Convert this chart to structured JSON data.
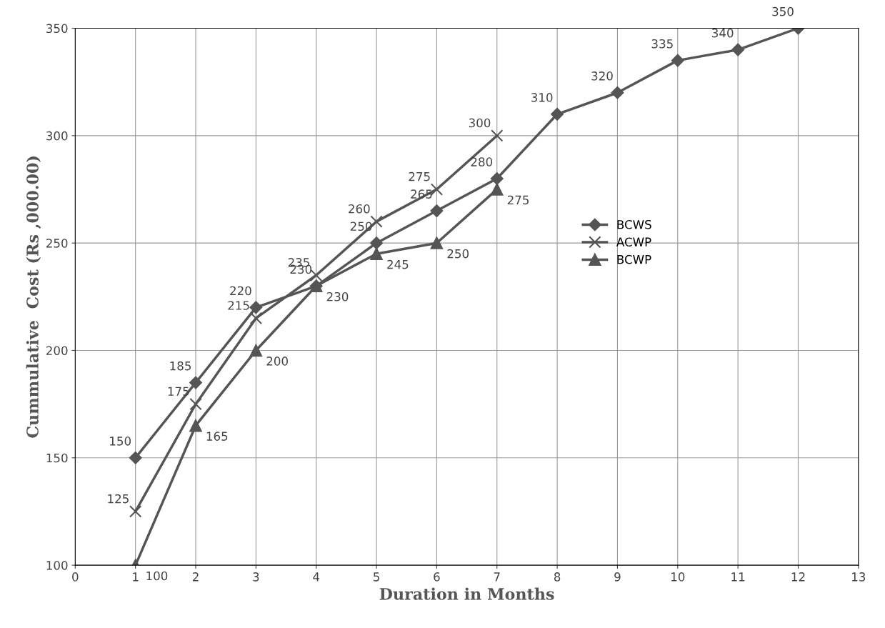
{
  "chart_data": {
    "type": "line",
    "xlabel": "Duration in Months",
    "ylabel": "Cummulative  Cost (Rs ,000.00)",
    "xlim": [
      0,
      13
    ],
    "xticks": [
      0,
      1,
      2,
      3,
      4,
      5,
      6,
      7,
      8,
      9,
      10,
      11,
      12,
      13
    ],
    "ylim": [
      100,
      350
    ],
    "yticks": [
      100,
      150,
      200,
      250,
      300,
      350
    ],
    "grid": true,
    "legend": "center right",
    "data_labels": true,
    "series": [
      {
        "name": "BCWS",
        "color": "#555555",
        "marker": "diamond",
        "x": [
          1,
          2,
          3,
          4,
          5,
          6,
          7,
          8,
          9,
          10,
          11,
          12
        ],
        "values": [
          150,
          185,
          220,
          230,
          250,
          265,
          280,
          310,
          320,
          335,
          340,
          350
        ]
      },
      {
        "name": "ACWP",
        "color": "#555555",
        "marker": "cross",
        "x": [
          1,
          2,
          3,
          4,
          5,
          6,
          7
        ],
        "values": [
          125,
          175,
          215,
          235,
          260,
          275,
          300
        ]
      },
      {
        "name": "BCWP",
        "color": "#555555",
        "marker": "triangle",
        "x": [
          1,
          2,
          3,
          4,
          5,
          6,
          7
        ],
        "values": [
          100,
          165,
          200,
          230,
          245,
          250,
          275
        ]
      }
    ]
  }
}
